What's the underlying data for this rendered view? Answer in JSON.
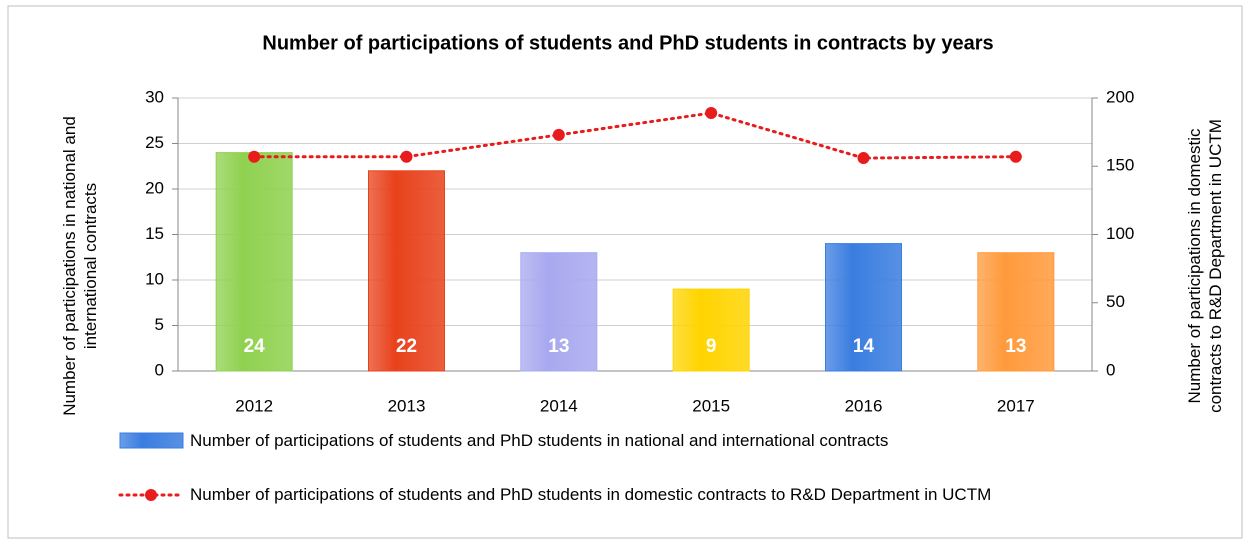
{
  "chart_data": {
    "type": "bar",
    "title": "Number of participations of students and PhD students in contracts by years",
    "y_label": "Number of participations in national and international contracts",
    "y2_label": "Number of participations in domestic contracts to R&D Department in UCTM",
    "categories": [
      "2012",
      "2013",
      "2014",
      "2015",
      "2016",
      "2017"
    ],
    "series": [
      {
        "name": "Number of participations of students and PhD students in national and international contracts",
        "type": "bar",
        "color": "#3a7de0",
        "colors": [
          "#8fd14f",
          "#e8421c",
          "#a8a8f0",
          "#ffd400",
          "#3a7de0",
          "#ff9a3c"
        ],
        "values": [
          24,
          22,
          13,
          9,
          14,
          13
        ]
      },
      {
        "name": "Number of participations of students and PhD students in domestic contracts to R&D Department in UCTM",
        "type": "line",
        "axis": "y2",
        "color": "#e81c1c",
        "values": [
          157,
          157,
          173,
          189,
          156,
          157
        ]
      }
    ],
    "ylim": [
      0,
      30
    ],
    "yticks": [
      0,
      5,
      10,
      15,
      20,
      25,
      30
    ],
    "y2lim": [
      0,
      200
    ],
    "y2ticks": [
      0,
      50,
      100,
      150,
      200
    ],
    "grid": true
  }
}
